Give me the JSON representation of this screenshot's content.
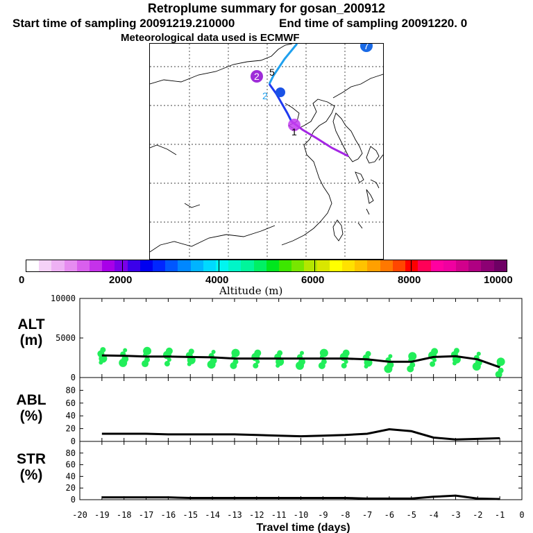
{
  "header": {
    "title": "Retroplume summary for gosan_200912",
    "start": "Start time of sampling 20091219.210000",
    "end": "End time of sampling 20091220.     0",
    "met": "Meteorological data used is ECMWF"
  },
  "colorbar": {
    "title": "Altitude  (m)",
    "ticks": [
      "0",
      "2000",
      "4000",
      "6000",
      "8000",
      "10000"
    ],
    "colors": [
      "#ffffff",
      "#f5d2f7",
      "#eeb1f4",
      "#e68cf0",
      "#d95fed",
      "#c532ea",
      "#a800e8",
      "#7a00e8",
      "#3b00ea",
      "#0000f0",
      "#0026ff",
      "#0057ff",
      "#0087ff",
      "#00b4ff",
      "#00d9ff",
      "#00f5f0",
      "#00f5c8",
      "#00f59b",
      "#00f064",
      "#00e61e",
      "#3de600",
      "#78e600",
      "#b4e600",
      "#d9e600",
      "#ffff00",
      "#ffe100",
      "#ffc300",
      "#ffa000",
      "#ff7800",
      "#ff4600",
      "#ff0000",
      "#ff0057",
      "#ff00a0",
      "#f000a0",
      "#d2008c",
      "#af0082",
      "#8c0073",
      "#6e0064"
    ]
  },
  "map": {
    "markers": [
      {
        "label": "1",
        "color": "#c23cf0"
      },
      {
        "label": "2",
        "color": "#9e2cd8"
      },
      {
        "label": "2",
        "color": "#1a52e6"
      },
      {
        "label": "5",
        "color": "#0000e0"
      },
      {
        "label": "7",
        "color": "#1a6ae6"
      }
    ]
  },
  "chart_data": [
    {
      "type": "line",
      "panel": "ALT",
      "label": [
        "ALT",
        "(m)"
      ],
      "x": [
        -19,
        -18,
        -17,
        -16,
        -15,
        -14,
        -13,
        -12,
        -11,
        -10,
        -9,
        -8,
        -7,
        -6,
        -5,
        -4,
        -3,
        -2,
        -1
      ],
      "values": [
        2800,
        2750,
        2650,
        2650,
        2600,
        2550,
        2400,
        2400,
        2400,
        2400,
        2400,
        2400,
        2300,
        2000,
        2000,
        2600,
        2700,
        2300,
        1300
      ],
      "ylim": [
        0,
        10000
      ],
      "yticks": [
        "10000",
        "5000",
        "0"
      ],
      "scatter_color": "#22ee5a"
    },
    {
      "type": "line",
      "panel": "ABL",
      "label": [
        "ABL",
        "(%)"
      ],
      "x": [
        -19,
        -18,
        -17,
        -16,
        -15,
        -14,
        -13,
        -12,
        -11,
        -10,
        -9,
        -8,
        -7,
        -6,
        -5,
        -4,
        -3,
        -2,
        -1
      ],
      "values": [
        12,
        12,
        12,
        11,
        11,
        11,
        11,
        10,
        9,
        8,
        9,
        10,
        12,
        19,
        16,
        6,
        3,
        4,
        5
      ],
      "ylim": [
        0,
        100
      ],
      "yticks": [
        "80",
        "60",
        "40",
        "20",
        "0"
      ]
    },
    {
      "type": "line",
      "panel": "STR",
      "label": [
        "STR",
        "(%)"
      ],
      "x": [
        -19,
        -18,
        -17,
        -16,
        -15,
        -14,
        -13,
        -12,
        -11,
        -10,
        -9,
        -8,
        -7,
        -6,
        -5,
        -4,
        -3,
        -2,
        -1
      ],
      "values": [
        4,
        4,
        4,
        4,
        3,
        3,
        3,
        3,
        3,
        3,
        3,
        3,
        2,
        2,
        2,
        5,
        7,
        2,
        1
      ],
      "ylim": [
        0,
        100
      ],
      "yticks": [
        "80",
        "60",
        "40",
        "20",
        "0"
      ]
    }
  ],
  "xaxis": {
    "title": "Travel time (days)",
    "ticks": [
      "-20",
      "-19",
      "-18",
      "-17",
      "-16",
      "-15",
      "-14",
      "-13",
      "-12",
      "-11",
      "-10",
      "-9",
      "-8",
      "-7",
      "-6",
      "-5",
      "-4",
      "-3",
      "-2",
      "-1",
      "0"
    ]
  }
}
